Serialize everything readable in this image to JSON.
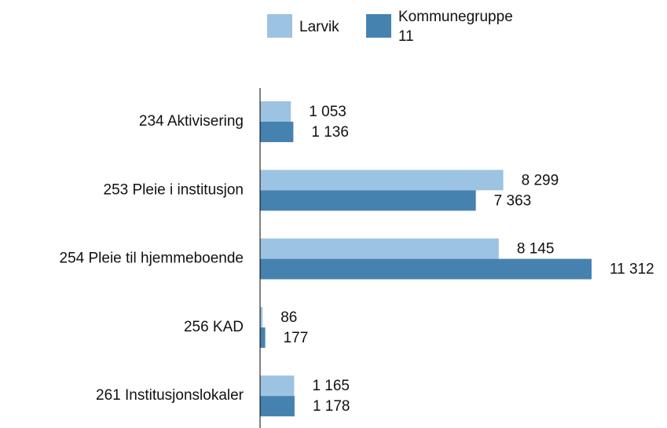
{
  "chart_data": {
    "type": "hbar",
    "categories": [
      "234 Aktivisering",
      "253 Pleie i institusjon",
      "254 Pleie til hjemmeboende",
      "256 KAD",
      "261 Institusjonslokaler"
    ],
    "series": [
      {
        "name": "Larvik",
        "color": "#9dc3e2",
        "values": [
          1053,
          8299,
          8145,
          86,
          1165
        ],
        "value_labels": [
          "1 053",
          "8 299",
          "8 145",
          "86",
          "1 165"
        ]
      },
      {
        "name": "Kommunegruppe 11",
        "color": "#4682b0",
        "values": [
          1136,
          7363,
          11312,
          177,
          1178
        ],
        "value_labels": [
          "1 136",
          "7 363",
          "11 312",
          "177",
          "1 178"
        ]
      }
    ]
  }
}
